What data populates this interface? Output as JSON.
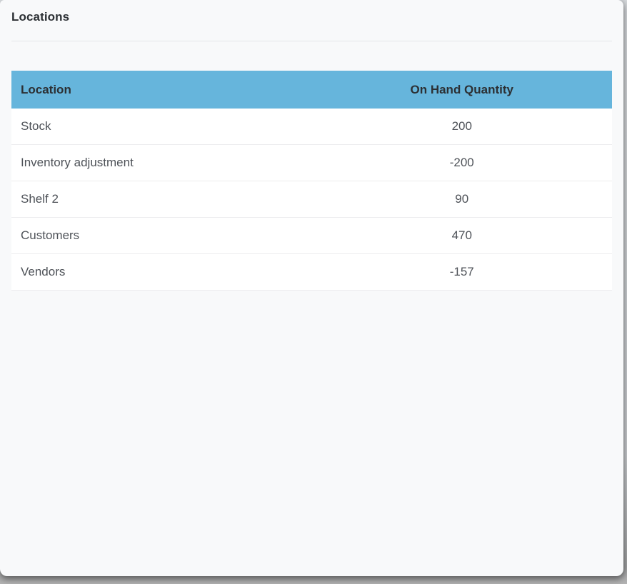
{
  "page": {
    "title": "Locations"
  },
  "table": {
    "columns": [
      {
        "label": "Location",
        "align": "left"
      },
      {
        "label": "On Hand Quantity",
        "align": "center"
      }
    ],
    "rows": [
      {
        "location": "Stock",
        "on_hand_quantity": "200"
      },
      {
        "location": "Inventory adjustment",
        "on_hand_quantity": "-200"
      },
      {
        "location": "Shelf 2",
        "on_hand_quantity": "90"
      },
      {
        "location": "Customers",
        "on_hand_quantity": "470"
      },
      {
        "location": "Vendors",
        "on_hand_quantity": "-157"
      }
    ]
  },
  "colors": {
    "table_header_bg": "#66b5dc",
    "card_bg": "#f8f9fa",
    "row_bg": "#ffffff",
    "title_text": "#2c3034",
    "row_text": "#4e5258",
    "divider": "#e4e6e9",
    "row_border": "#ececee"
  }
}
